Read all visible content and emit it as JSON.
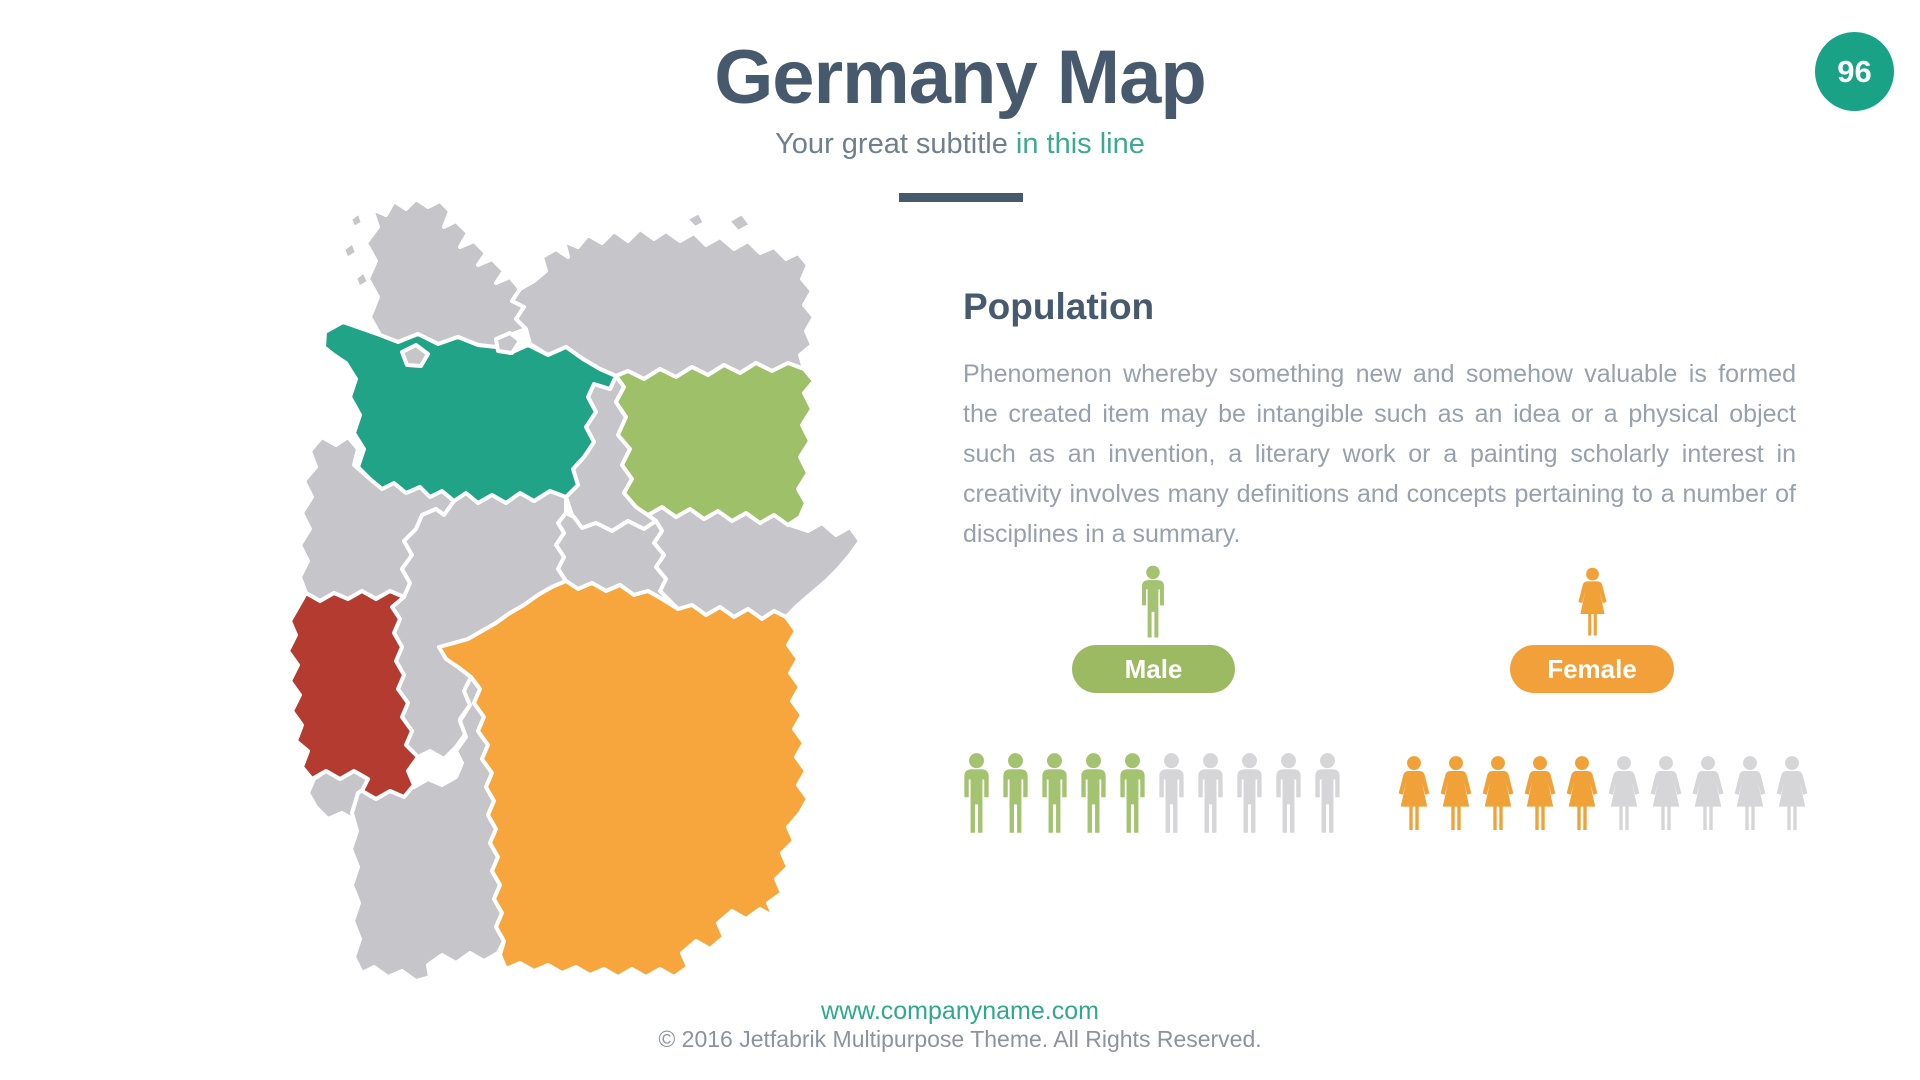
{
  "slide": {
    "title": "Germany Map",
    "subtitle_plain": "Your great subtitle ",
    "subtitle_accent": "in this line",
    "page_number": "96",
    "footer_url": "www.companyname.com",
    "footer_copyright": "© 2016 Jetfabrik Multipurpose Theme. All Rights Reserved."
  },
  "population": {
    "heading": "Population",
    "body": "Phenomenon whereby something new and somehow valuable is formed the created item may be intangible such as an idea or a physical object such as an invention, a literary work or a painting scholarly interest in creativity involves many definitions and concepts pertaining to a number of disciplines in a summary.",
    "male_label": "Male",
    "female_label": "Female"
  },
  "chart_data": {
    "type": "pictogram",
    "series": [
      {
        "name": "Male",
        "filled": 5,
        "total": 10,
        "color": "#a3c371",
        "inactive_color": "#d6d6d8",
        "glyph": "male-person-icon"
      },
      {
        "name": "Female",
        "filled": 5,
        "total": 10,
        "color": "#f0a138",
        "inactive_color": "#d6d6d8",
        "glyph": "female-person-icon"
      }
    ],
    "title": "Population",
    "legend": [
      "Male",
      "Female"
    ]
  },
  "map": {
    "name": "germany-federal-states-map",
    "border_color": "#ffffff",
    "default_fill": "#c6c5c9",
    "highlights": {
      "lower-saxony": "#20a387",
      "brandenburg": "#9dc069",
      "rhineland-palatinate": "#b43b30",
      "bavaria": "#f6a63c"
    }
  },
  "colors": {
    "accent_teal": "#1aa287",
    "accent_green": "#9cba62",
    "accent_orange": "#f2a13a",
    "accent_red": "#b43b30",
    "heading_slate": "#475a6d",
    "body_gray": "#96a1ad"
  }
}
